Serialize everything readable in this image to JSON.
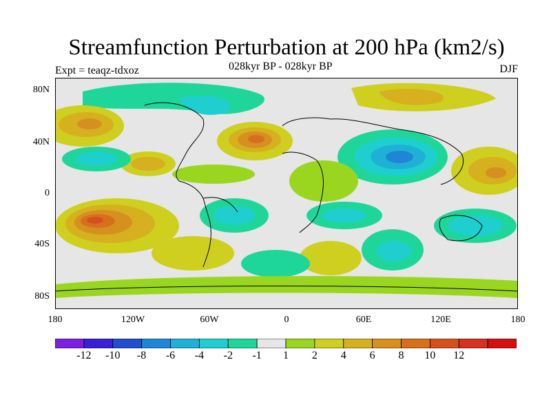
{
  "title": "Streamfunction Perturbation at 200 hPa (km2/s)",
  "subtitle": "028kyr BP - 028kyr BP",
  "left_label": "Expt = teaqz-tdxoz",
  "right_label": "DJF",
  "lat_ticks": [
    "80N",
    "40N",
    "0",
    "40S",
    "80S"
  ],
  "lon_ticks": [
    "180",
    "120W",
    "60W",
    "0",
    "60E",
    "120E",
    "180"
  ],
  "colorbar": {
    "colors": [
      "#7b1fe0",
      "#3a1fd6",
      "#1f4fcf",
      "#1f86d6",
      "#1fb0d6",
      "#1fcfcf",
      "#1fd69a",
      "#e6e6e6",
      "#9ad61f",
      "#cfcf1f",
      "#d6b01f",
      "#d6901f",
      "#d6701f",
      "#d6501f",
      "#d6301f",
      "#d60f0f"
    ],
    "labels": [
      "-12",
      "-10",
      "-8",
      "-6",
      "-4",
      "-2",
      "-1",
      "1",
      "2",
      "4",
      "6",
      "8",
      "10",
      "12"
    ]
  }
}
